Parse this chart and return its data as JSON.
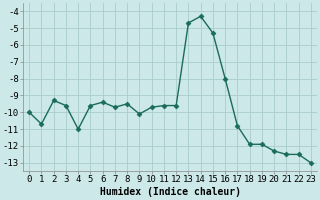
{
  "x": [
    0,
    1,
    2,
    3,
    4,
    5,
    6,
    7,
    8,
    9,
    10,
    11,
    12,
    13,
    14,
    15,
    16,
    17,
    18,
    19,
    20,
    21,
    22,
    23
  ],
  "y": [
    -10.0,
    -10.7,
    -9.3,
    -9.6,
    -11.0,
    -9.6,
    -9.4,
    -9.7,
    -9.5,
    -10.1,
    -9.7,
    -9.6,
    -9.6,
    -4.7,
    -4.3,
    -5.3,
    -8.0,
    -10.8,
    -11.9,
    -11.9,
    -12.3,
    -12.5,
    -12.5,
    -13.0
  ],
  "line_color": "#1a6b5a",
  "marker": "D",
  "markersize": 2.5,
  "linewidth": 1.0,
  "xlabel": "Humidex (Indice chaleur)",
  "xlabel_fontsize": 7,
  "bg_color": "#cce8e8",
  "grid_color": "#aacccc",
  "ylim": [
    -13.5,
    -3.5
  ],
  "xlim": [
    -0.5,
    23.5
  ],
  "yticks": [
    -13,
    -12,
    -11,
    -10,
    -9,
    -8,
    -7,
    -6,
    -5,
    -4
  ],
  "xticks": [
    0,
    1,
    2,
    3,
    4,
    5,
    6,
    7,
    8,
    9,
    10,
    11,
    12,
    13,
    14,
    15,
    16,
    17,
    18,
    19,
    20,
    21,
    22,
    23
  ],
  "tick_fontsize": 6.5
}
